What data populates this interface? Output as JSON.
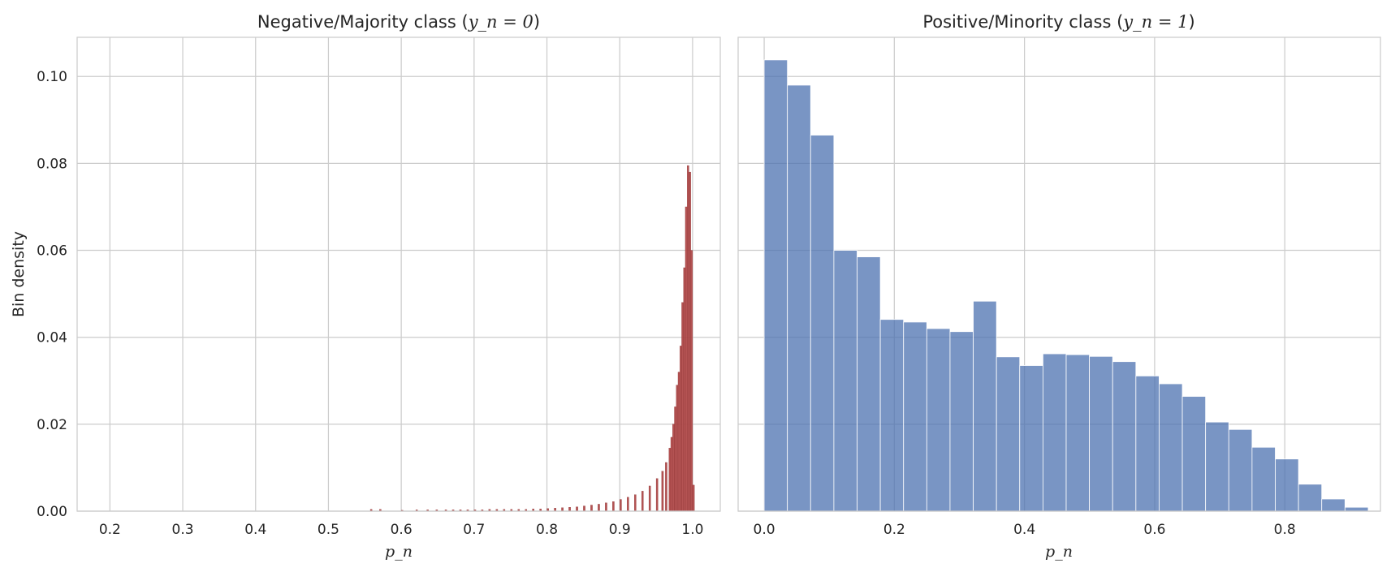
{
  "chart_data": [
    {
      "type": "histogram",
      "title": "Negative/Majority class (y_n = 0)",
      "title_prefix": "Negative/Majority class (",
      "title_math": "y_n = 0",
      "title_suffix": ")",
      "xlabel": "p_n",
      "ylabel": "Bin density",
      "xlim": [
        0.155,
        1.038
      ],
      "ylim": [
        0,
        0.109
      ],
      "xticks": [
        "0.2",
        "0.3",
        "0.4",
        "0.5",
        "0.6",
        "0.7",
        "0.8",
        "0.9",
        "1.0"
      ],
      "yticks": [
        "0.00",
        "0.02",
        "0.04",
        "0.06",
        "0.08",
        "0.10"
      ],
      "grid": true,
      "color": "#b04a4a",
      "bin_width": 0.0025,
      "bins": [
        [
          0.5575,
          0.0004
        ],
        [
          0.57,
          0.0004
        ],
        [
          0.6,
          0.0002
        ],
        [
          0.62,
          0.0003
        ],
        [
          0.635,
          0.0003
        ],
        [
          0.6475,
          0.0003
        ],
        [
          0.66,
          0.0003
        ],
        [
          0.67,
          0.0003
        ],
        [
          0.68,
          0.0003
        ],
        [
          0.69,
          0.0003
        ],
        [
          0.7,
          0.0003
        ],
        [
          0.71,
          0.0003
        ],
        [
          0.72,
          0.0004
        ],
        [
          0.73,
          0.0004
        ],
        [
          0.74,
          0.0004
        ],
        [
          0.75,
          0.0004
        ],
        [
          0.76,
          0.0004
        ],
        [
          0.77,
          0.0004
        ],
        [
          0.78,
          0.0005
        ],
        [
          0.79,
          0.0005
        ],
        [
          0.8,
          0.0006
        ],
        [
          0.81,
          0.0007
        ],
        [
          0.82,
          0.0008
        ],
        [
          0.83,
          0.0009
        ],
        [
          0.84,
          0.001
        ],
        [
          0.85,
          0.0012
        ],
        [
          0.86,
          0.0014
        ],
        [
          0.87,
          0.0016
        ],
        [
          0.88,
          0.0019
        ],
        [
          0.89,
          0.0022
        ],
        [
          0.9,
          0.0027
        ],
        [
          0.91,
          0.0032
        ],
        [
          0.92,
          0.0038
        ],
        [
          0.93,
          0.0046
        ],
        [
          0.94,
          0.0058
        ],
        [
          0.95,
          0.0075
        ],
        [
          0.9575,
          0.0092
        ],
        [
          0.9625,
          0.0112
        ],
        [
          0.9675,
          0.0145
        ],
        [
          0.97,
          0.017
        ],
        [
          0.9725,
          0.02
        ],
        [
          0.975,
          0.024
        ],
        [
          0.9775,
          0.029
        ],
        [
          0.98,
          0.032
        ],
        [
          0.9825,
          0.038
        ],
        [
          0.985,
          0.048
        ],
        [
          0.9875,
          0.056
        ],
        [
          0.99,
          0.07
        ],
        [
          0.9925,
          0.0795
        ],
        [
          0.995,
          0.078
        ],
        [
          0.9975,
          0.06
        ],
        [
          1.0,
          0.006
        ]
      ]
    },
    {
      "type": "histogram",
      "title": "Positive/Minority class (y_n = 1)",
      "title_prefix": "Positive/Minority class (",
      "title_math": "y_n = 1",
      "title_suffix": ")",
      "xlabel": "p_n",
      "ylabel": "",
      "xlim": [
        -0.04,
        0.947
      ],
      "ylim": [
        0,
        0.109
      ],
      "xticks": [
        "0.0",
        "0.2",
        "0.4",
        "0.6",
        "0.8"
      ],
      "grid": true,
      "color": "#4c72b0",
      "bin_width": 0.0357,
      "bins": [
        [
          0.0,
          0.1038
        ],
        [
          0.0357,
          0.098
        ],
        [
          0.0714,
          0.0865
        ],
        [
          0.1071,
          0.06
        ],
        [
          0.1428,
          0.0585
        ],
        [
          0.1785,
          0.0441
        ],
        [
          0.2142,
          0.0435
        ],
        [
          0.2499,
          0.042
        ],
        [
          0.2856,
          0.0413
        ],
        [
          0.3213,
          0.0483
        ],
        [
          0.357,
          0.0355
        ],
        [
          0.3927,
          0.0335
        ],
        [
          0.4284,
          0.0362
        ],
        [
          0.4641,
          0.036
        ],
        [
          0.4998,
          0.0356
        ],
        [
          0.5355,
          0.0344
        ],
        [
          0.5712,
          0.0311
        ],
        [
          0.6069,
          0.0293
        ],
        [
          0.6426,
          0.0264
        ],
        [
          0.6783,
          0.0205
        ],
        [
          0.714,
          0.0188
        ],
        [
          0.7497,
          0.0147
        ],
        [
          0.7854,
          0.012
        ],
        [
          0.8211,
          0.0062
        ],
        [
          0.8568,
          0.0028
        ],
        [
          0.8925,
          0.0009
        ]
      ]
    }
  ]
}
